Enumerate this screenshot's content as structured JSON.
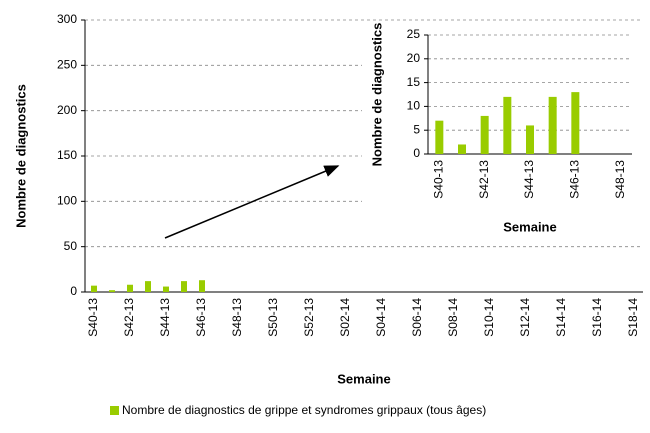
{
  "chart_data": [
    {
      "type": "bar",
      "xlabel": "Semaine",
      "ylabel": "Nombre de diagnostics",
      "categories": [
        "S40-13",
        null,
        "S42-13",
        null,
        "S44-13",
        null,
        "S46-13",
        null,
        "S48-13",
        null,
        "S50-13",
        null,
        "S52-13",
        null,
        "S02-14",
        null,
        "S04-14",
        null,
        "S06-14",
        null,
        "S08-14",
        null,
        "S10-14",
        null,
        "S12-14",
        null,
        "S14-14",
        null,
        "S16-14",
        null,
        "S18-14"
      ],
      "series": [
        {
          "name": "Nombre de diagnostics de grippe et syndromes grippaux (tous âges)",
          "color": "#99cc00",
          "values": [
            7,
            2,
            8,
            12,
            6,
            12,
            13,
            null,
            null,
            null,
            null,
            null,
            null,
            null,
            null,
            null,
            null,
            null,
            null,
            null,
            null,
            null,
            null,
            null,
            null,
            null,
            null,
            null,
            null,
            null,
            null
          ]
        }
      ],
      "ylim": [
        0,
        300
      ],
      "yticks": [
        0,
        50,
        100,
        150,
        200,
        250,
        300
      ],
      "grid": true,
      "legend": "bottom"
    },
    {
      "type": "bar",
      "xlabel": "Semaine",
      "ylabel": "Nombre de diagnostics",
      "categories": [
        "S40-13",
        null,
        "S42-13",
        null,
        "S44-13",
        null,
        "S46-13",
        null,
        "S48-13"
      ],
      "series": [
        {
          "color": "#99cc00",
          "values": [
            7,
            2,
            8,
            12,
            6,
            12,
            13,
            null,
            null
          ]
        }
      ],
      "ylim": [
        0,
        25
      ],
      "yticks": [
        0,
        5,
        10,
        15,
        20,
        25
      ],
      "grid": true
    }
  ]
}
